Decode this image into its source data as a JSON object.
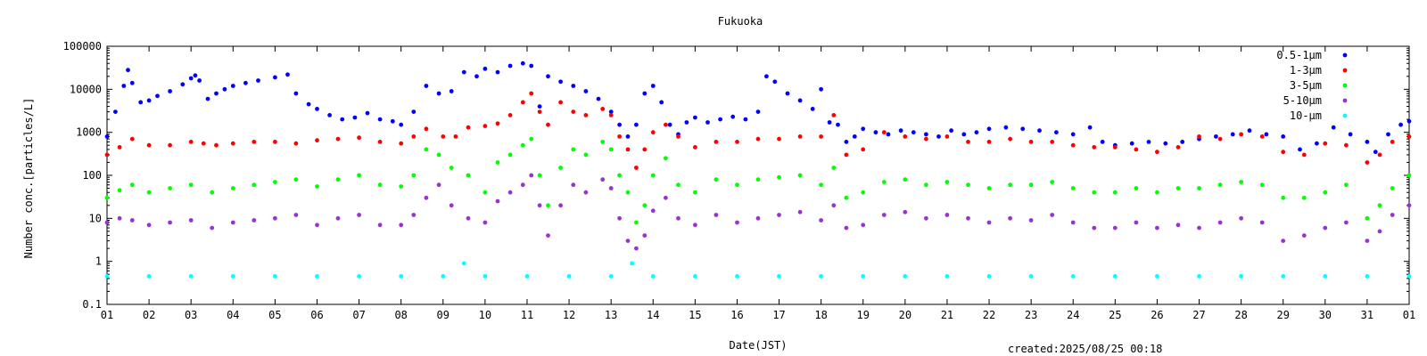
{
  "chart_data": {
    "type": "scatter",
    "title": "Fukuoka",
    "xlabel": "Date(JST)",
    "ylabel": "Number conc.[particles/L]",
    "yscale": "log",
    "ylim": [
      0.1,
      100000
    ],
    "xlim": [
      1,
      32
    ],
    "yticks": [
      "0.1",
      "1",
      "10",
      "100",
      "1000",
      "10000",
      "100000"
    ],
    "xticks": [
      "01",
      "02",
      "03",
      "04",
      "05",
      "06",
      "07",
      "08",
      "09",
      "10",
      "11",
      "12",
      "13",
      "14",
      "15",
      "16",
      "17",
      "18",
      "19",
      "20",
      "21",
      "22",
      "23",
      "24",
      "25",
      "26",
      "27",
      "28",
      "29",
      "30",
      "31",
      "01"
    ],
    "grid": false,
    "legend_position": "top-right",
    "footer": "created:2025/08/25 00:18",
    "series": [
      {
        "name": "0.5-1μm",
        "color": "#0000ff",
        "x": [
          1,
          1.2,
          1.4,
          1.5,
          1.6,
          1.8,
          2,
          2.2,
          2.5,
          2.8,
          3,
          3.1,
          3.2,
          3.4,
          3.6,
          3.8,
          4,
          4.3,
          4.6,
          5,
          5.3,
          5.5,
          5.8,
          6,
          6.3,
          6.6,
          6.9,
          7.2,
          7.5,
          7.8,
          8,
          8.3,
          8.6,
          8.9,
          9.2,
          9.5,
          9.8,
          10,
          10.3,
          10.6,
          10.9,
          11.1,
          11.3,
          11.5,
          11.8,
          12.1,
          12.4,
          12.7,
          13,
          13.2,
          13.4,
          13.6,
          13.8,
          14,
          14.2,
          14.4,
          14.6,
          14.8,
          15,
          15.3,
          15.6,
          15.9,
          16.2,
          16.5,
          16.7,
          16.9,
          17.2,
          17.5,
          17.8,
          18,
          18.2,
          18.4,
          18.6,
          18.8,
          19,
          19.3,
          19.6,
          19.9,
          20.2,
          20.5,
          20.8,
          21.1,
          21.4,
          21.7,
          22,
          22.4,
          22.8,
          23.2,
          23.6,
          24,
          24.4,
          24.7,
          25,
          25.4,
          25.8,
          26.2,
          26.6,
          27,
          27.4,
          27.8,
          28.2,
          28.6,
          29,
          29.4,
          29.8,
          30.2,
          30.6,
          31,
          31.2,
          31.5,
          31.8,
          32
        ],
        "values": [
          800,
          3000,
          12000,
          28000,
          14000,
          5000,
          5500,
          7000,
          9000,
          13000,
          18000,
          21000,
          16000,
          6000,
          8000,
          10000,
          12000,
          14000,
          16000,
          19000,
          22000,
          8000,
          4500,
          3500,
          2500,
          2000,
          2200,
          2800,
          2000,
          1800,
          1500,
          3000,
          12000,
          8000,
          9000,
          25000,
          20000,
          30000,
          25000,
          35000,
          40000,
          35000,
          4000,
          20000,
          15000,
          12000,
          9000,
          6000,
          3000,
          1500,
          800,
          1500,
          8000,
          12000,
          5000,
          1500,
          900,
          1700,
          2200,
          1700,
          2000,
          2300,
          2000,
          3000,
          20000,
          15000,
          8000,
          5500,
          3500,
          10000,
          1700,
          1500,
          600,
          800,
          1200,
          1000,
          900,
          1100,
          1000,
          900,
          800,
          1100,
          900,
          1000,
          1200,
          1300,
          1200,
          1100,
          1000,
          900,
          1300,
          600,
          500,
          550,
          600,
          550,
          600,
          700,
          800,
          900,
          1100,
          900,
          800,
          400,
          550,
          1300,
          900,
          600,
          350,
          900,
          1500,
          1800
        ]
      },
      {
        "name": "1-3μm",
        "color": "#ff0000",
        "x": [
          1,
          1.3,
          1.6,
          2,
          2.5,
          3,
          3.3,
          3.6,
          4,
          4.5,
          5,
          5.5,
          6,
          6.5,
          7,
          7.5,
          8,
          8.3,
          8.6,
          9,
          9.3,
          9.6,
          10,
          10.3,
          10.6,
          10.9,
          11.1,
          11.3,
          11.5,
          11.8,
          12.1,
          12.4,
          12.8,
          13,
          13.2,
          13.4,
          13.6,
          13.8,
          14,
          14.3,
          14.6,
          15,
          15.5,
          16,
          16.5,
          17,
          17.5,
          18,
          18.3,
          18.6,
          19,
          19.5,
          20,
          20.5,
          21,
          21.5,
          22,
          22.5,
          23,
          23.5,
          24,
          24.5,
          25,
          25.5,
          26,
          26.5,
          27,
          27.5,
          28,
          28.5,
          29,
          29.5,
          30,
          30.5,
          31,
          31.3,
          31.6,
          32
        ],
        "values": [
          300,
          450,
          700,
          500,
          500,
          600,
          550,
          500,
          550,
          600,
          600,
          550,
          650,
          700,
          750,
          600,
          550,
          800,
          1200,
          800,
          800,
          1300,
          1400,
          1600,
          2500,
          5000,
          8000,
          3000,
          1500,
          5000,
          3000,
          2500,
          3500,
          2500,
          800,
          400,
          150,
          400,
          1000,
          1500,
          800,
          450,
          600,
          600,
          700,
          700,
          800,
          800,
          2500,
          300,
          400,
          1000,
          800,
          700,
          800,
          600,
          600,
          700,
          600,
          600,
          500,
          450,
          450,
          400,
          350,
          450,
          800,
          700,
          900,
          800,
          350,
          300,
          550,
          500,
          200,
          300,
          600,
          800
        ]
      },
      {
        "name": "3-5μm",
        "color": "#00ff00",
        "x": [
          1,
          1.3,
          1.6,
          2,
          2.5,
          3,
          3.5,
          4,
          4.5,
          5,
          5.5,
          6,
          6.5,
          7,
          7.5,
          8,
          8.3,
          8.6,
          8.9,
          9.2,
          9.6,
          10,
          10.3,
          10.6,
          10.9,
          11.1,
          11.3,
          11.5,
          11.8,
          12.1,
          12.4,
          12.8,
          13,
          13.2,
          13.4,
          13.6,
          13.8,
          14,
          14.3,
          14.6,
          15,
          15.5,
          16,
          16.5,
          17,
          17.5,
          18,
          18.3,
          18.6,
          19,
          19.5,
          20,
          20.5,
          21,
          21.5,
          22,
          22.5,
          23,
          23.5,
          24,
          24.5,
          25,
          25.5,
          26,
          26.5,
          27,
          27.5,
          28,
          28.5,
          29,
          29.5,
          30,
          30.5,
          31,
          31.3,
          31.6,
          32
        ],
        "values": [
          30,
          45,
          60,
          40,
          50,
          60,
          40,
          50,
          60,
          70,
          80,
          55,
          80,
          100,
          60,
          55,
          100,
          400,
          300,
          150,
          100,
          40,
          200,
          300,
          500,
          700,
          100,
          20,
          150,
          400,
          300,
          600,
          400,
          100,
          40,
          8,
          20,
          100,
          250,
          60,
          40,
          80,
          60,
          80,
          90,
          100,
          60,
          150,
          30,
          40,
          70,
          80,
          60,
          70,
          60,
          50,
          60,
          60,
          70,
          50,
          40,
          40,
          50,
          40,
          50,
          50,
          60,
          70,
          60,
          30,
          30,
          40,
          60,
          10,
          20,
          50,
          100
        ]
      },
      {
        "name": "5-10μm",
        "color": "#9a32cd",
        "x": [
          1,
          1.3,
          1.6,
          2,
          2.5,
          3,
          3.5,
          4,
          4.5,
          5,
          5.5,
          6,
          6.5,
          7,
          7.5,
          8,
          8.3,
          8.6,
          8.9,
          9.2,
          9.6,
          10,
          10.3,
          10.6,
          10.9,
          11.1,
          11.3,
          11.5,
          11.8,
          12.1,
          12.4,
          12.8,
          13,
          13.2,
          13.4,
          13.6,
          13.8,
          14,
          14.3,
          14.6,
          15,
          15.5,
          16,
          16.5,
          17,
          17.5,
          18,
          18.3,
          18.6,
          19,
          19.5,
          20,
          20.5,
          21,
          21.5,
          22,
          22.5,
          23,
          23.5,
          24,
          24.5,
          25,
          25.5,
          26,
          26.5,
          27,
          27.5,
          28,
          28.5,
          29,
          29.5,
          30,
          30.5,
          31,
          31.3,
          31.6,
          32
        ],
        "values": [
          8,
          10,
          9,
          7,
          8,
          9,
          6,
          8,
          9,
          10,
          12,
          7,
          10,
          12,
          7,
          7,
          12,
          30,
          60,
          20,
          10,
          8,
          25,
          40,
          60,
          100,
          20,
          4,
          20,
          60,
          40,
          80,
          50,
          10,
          3,
          2,
          4,
          15,
          30,
          10,
          7,
          12,
          8,
          10,
          12,
          14,
          9,
          20,
          6,
          7,
          12,
          14,
          10,
          12,
          10,
          8,
          10,
          9,
          12,
          8,
          6,
          6,
          8,
          6,
          7,
          6,
          8,
          10,
          8,
          3,
          4,
          6,
          8,
          3,
          5,
          12,
          20
        ]
      },
      {
        "name": "10-μm",
        "color": "#00ffff",
        "x": [
          1,
          2,
          3,
          4,
          5,
          6,
          7,
          8,
          9,
          9.5,
          10,
          11,
          12,
          13,
          13.5,
          14,
          15,
          16,
          17,
          18,
          19,
          20,
          21,
          22,
          23,
          24,
          25,
          26,
          27,
          28,
          29,
          30,
          31,
          32
        ],
        "values": [
          0.45,
          0.45,
          0.45,
          0.45,
          0.45,
          0.45,
          0.45,
          0.45,
          0.45,
          0.9,
          0.45,
          0.45,
          0.45,
          0.45,
          0.9,
          0.45,
          0.45,
          0.45,
          0.45,
          0.45,
          0.45,
          0.45,
          0.45,
          0.45,
          0.45,
          0.45,
          0.45,
          0.45,
          0.45,
          0.45,
          0.45,
          0.45,
          0.45,
          0.45
        ]
      }
    ]
  }
}
